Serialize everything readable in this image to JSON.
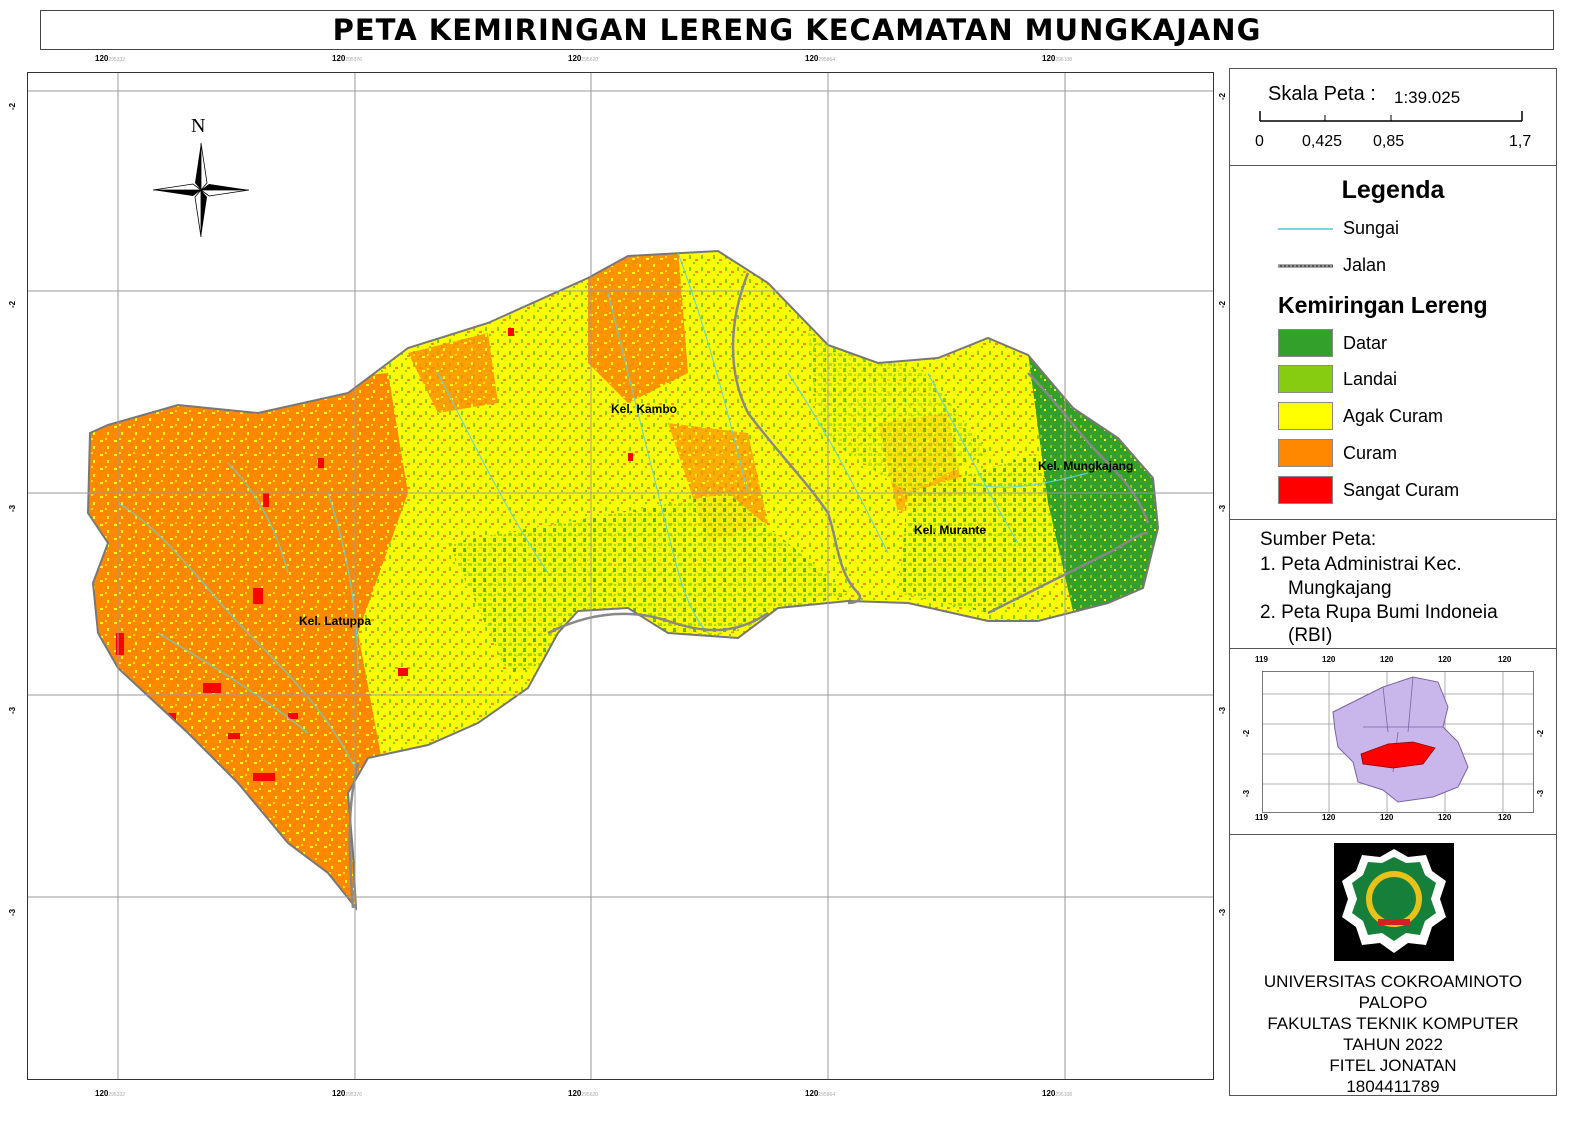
{
  "title": "PETA KEMIRINGAN LERENG KECAMATAN MUNGKAJANG",
  "ticks": {
    "x_top": [
      "120",
      "120",
      "120",
      "120",
      "120"
    ],
    "x_bottom": [
      "120",
      "120",
      "120",
      "120",
      "120"
    ],
    "x_small": [
      "295332",
      "295376",
      "295620",
      "295864",
      "296108"
    ],
    "y_left": [
      "-2",
      "-2",
      "-3",
      "-3",
      "-3"
    ],
    "y_right": [
      "-2",
      "-2",
      "-3",
      "-3",
      "-3"
    ]
  },
  "places": {
    "kambo": "Kel. Kambo",
    "latuppa": "Kel. Latuppa",
    "murante": "Kel. Murante",
    "mungkajang": "Kel. Mungkajang"
  },
  "north_label": "N",
  "scale": {
    "label": "Skala Peta :",
    "ratio": "1:39.025",
    "ticks": [
      "0",
      "0,425",
      "0,85",
      "1,7"
    ]
  },
  "legend": {
    "title": "Legenda",
    "sungai": "Sungai",
    "jalan": "Jalan",
    "slope_title": "Kemiringan Lereng",
    "classes": [
      {
        "label": "Datar",
        "color": "#33a02c"
      },
      {
        "label": "Landai",
        "color": "#88cc11"
      },
      {
        "label": "Agak Curam",
        "color": "#ffff00"
      },
      {
        "label": "Curam",
        "color": "#ff8800"
      },
      {
        "label": "Sangat Curam",
        "color": "#ff0000"
      }
    ]
  },
  "source": {
    "title": "Sumber Peta:",
    "item1_a": "1. Peta Administrai Kec.",
    "item1_b": "Mungkajang",
    "item2_a": "2. Peta Rupa Bumi Indoneia",
    "item2_b": "(RBI)"
  },
  "inset": {
    "top_ticks": [
      "119",
      "120",
      "120",
      "120",
      "120"
    ],
    "bottom_ticks": [
      "119",
      "120",
      "120",
      "120",
      "120"
    ],
    "left_ticks": [
      "-2",
      "-3"
    ],
    "right_ticks": [
      "-2",
      "-3"
    ]
  },
  "credits": {
    "l1": "UNIVERSITAS COKROAMINOTO",
    "l2": "PALOPO",
    "l3": "FAKULTAS TEKNIK KOMPUTER",
    "l4": "TAHUN 2022",
    "l5": "FITEL JONATAN",
    "l6": "1804411789"
  }
}
